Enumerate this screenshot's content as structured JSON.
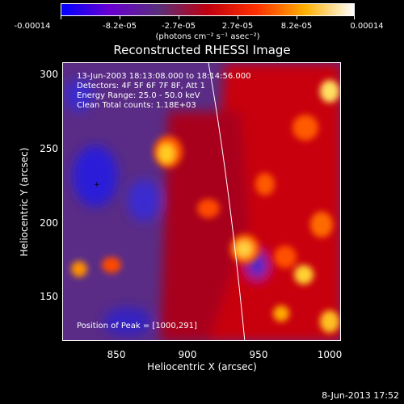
{
  "colorbar": {
    "labels": [
      "-0.00014",
      "-8.2e-05",
      "-2.7e-05",
      "2.7e-05",
      "8.2e-05",
      "0.00014"
    ],
    "units": "(photons cm⁻² s⁻¹ asec⁻²)",
    "colors": [
      "#0000ff",
      "#6a00d0",
      "#5a2f7a",
      "#c00010",
      "#ff3000",
      "#ffb000",
      "#ffffff"
    ]
  },
  "title": "Reconstructed RHESSI Image",
  "info": {
    "time": "13-Jun-2003 18:13:08.000 to 18:14:56.000",
    "detectors": "Detectors: 4F 5F 6F 7F 8F, Att 1",
    "energy": "Energy Range: 25.0 - 50.0 keV",
    "clean": "Clean    Total counts: 1.18E+03",
    "peak": "Position of Peak = [1000,291]"
  },
  "axes": {
    "x_ticks": [
      "850",
      "900",
      "950",
      "1000"
    ],
    "y_ticks": [
      "300",
      "250",
      "200",
      "150"
    ],
    "xlabel": "Heliocentric X (arcsec)",
    "ylabel": "Heliocentric Y (arcsec)"
  },
  "footer": "8-Jun-2013 17:52"
}
